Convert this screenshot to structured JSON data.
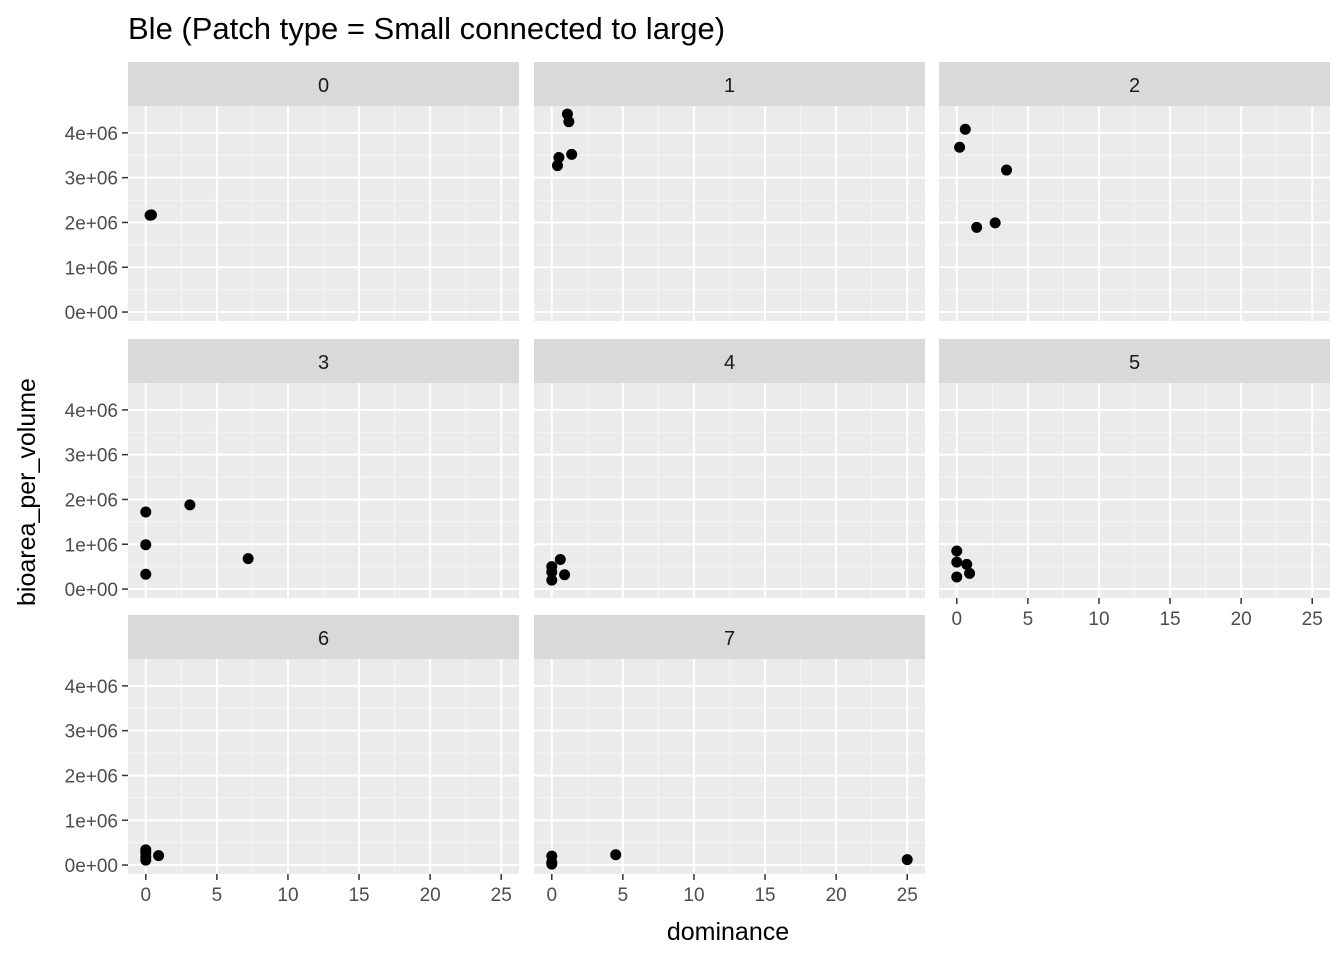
{
  "chart_data": {
    "type": "scatter",
    "title": "Ble (Patch type = Small connected to large)",
    "xlabel": "dominance",
    "ylabel": "bioarea_per_volume",
    "xlim": [
      -1.25,
      26.25
    ],
    "ylim": [
      -200000,
      4600000
    ],
    "x_ticks": [
      0,
      5,
      10,
      15,
      20,
      25
    ],
    "x_tick_labels": [
      "0",
      "5",
      "10",
      "15",
      "20",
      "25"
    ],
    "y_ticks": [
      0,
      1000000,
      2000000,
      3000000,
      4000000
    ],
    "y_tick_labels": [
      "0e+00",
      "1e+06",
      "2e+06",
      "3e+06",
      "4e+06"
    ],
    "grid": true,
    "legend": "none",
    "point_color": "#000000",
    "panel_background": "#ebebeb",
    "strip_background": "#d9d9d9",
    "facets": [
      {
        "label": "0",
        "points": [
          [
            0.3,
            2160000
          ],
          [
            0.4,
            2170000
          ]
        ]
      },
      {
        "label": "1",
        "points": [
          [
            1.1,
            4420000
          ],
          [
            1.2,
            4250000
          ],
          [
            0.5,
            3450000
          ],
          [
            1.4,
            3520000
          ],
          [
            0.4,
            3270000
          ]
        ]
      },
      {
        "label": "2",
        "points": [
          [
            0.6,
            4080000
          ],
          [
            0.2,
            3680000
          ],
          [
            3.5,
            3170000
          ],
          [
            2.7,
            1990000
          ],
          [
            1.4,
            1890000
          ]
        ]
      },
      {
        "label": "3",
        "points": [
          [
            0.0,
            1720000
          ],
          [
            3.1,
            1880000
          ],
          [
            0.0,
            990000
          ],
          [
            7.2,
            680000
          ],
          [
            0.0,
            330000
          ]
        ]
      },
      {
        "label": "4",
        "points": [
          [
            0.0,
            500000
          ],
          [
            0.6,
            660000
          ],
          [
            0.0,
            380000
          ],
          [
            0.9,
            320000
          ],
          [
            0.0,
            200000
          ]
        ]
      },
      {
        "label": "5",
        "points": [
          [
            0.0,
            850000
          ],
          [
            0.0,
            600000
          ],
          [
            0.7,
            550000
          ],
          [
            0.9,
            350000
          ],
          [
            0.0,
            270000
          ]
        ]
      },
      {
        "label": "6",
        "points": [
          [
            0.0,
            340000
          ],
          [
            0.0,
            270000
          ],
          [
            0.9,
            210000
          ],
          [
            0.0,
            180000
          ],
          [
            0.0,
            110000
          ]
        ]
      },
      {
        "label": "7",
        "points": [
          [
            0.0,
            200000
          ],
          [
            4.5,
            230000
          ],
          [
            0.0,
            60000
          ],
          [
            25.0,
            120000
          ],
          [
            0.0,
            20000
          ]
        ]
      }
    ]
  }
}
